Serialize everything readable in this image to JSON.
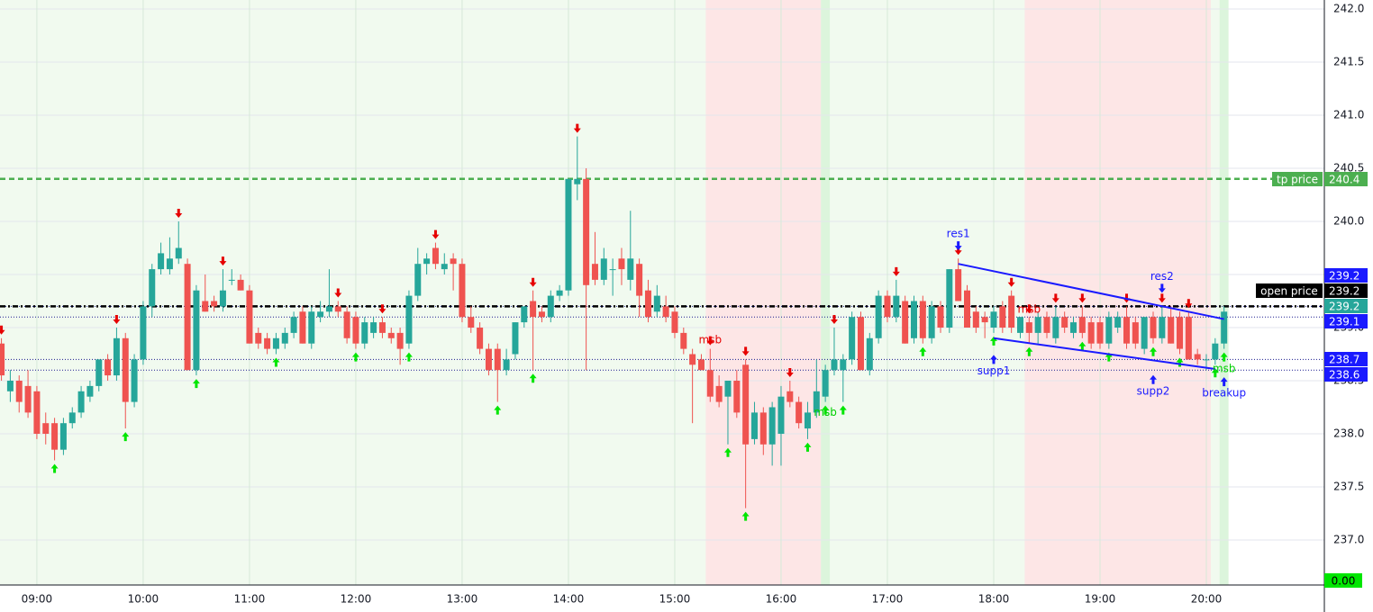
{
  "chart_data": {
    "type": "candlestick",
    "up_color": "#26a69a",
    "down_color": "#ef5350",
    "xlim": [
      519.2,
      1266.6
    ],
    "ylim": [
      236.576,
      242.085
    ],
    "xticks": [
      {
        "value": 540,
        "label": "09:00"
      },
      {
        "value": 600,
        "label": "10:00"
      },
      {
        "value": 660,
        "label": "11:00"
      },
      {
        "value": 720,
        "label": "12:00"
      },
      {
        "value": 780,
        "label": "13:00"
      },
      {
        "value": 840,
        "label": "14:00"
      },
      {
        "value": 900,
        "label": "15:00"
      },
      {
        "value": 960,
        "label": "16:00"
      },
      {
        "value": 1020,
        "label": "17:00"
      },
      {
        "value": 1080,
        "label": "18:00"
      },
      {
        "value": 1140,
        "label": "19:00"
      },
      {
        "value": 1200,
        "label": "20:00"
      }
    ],
    "yticks": [
      {
        "value": 237,
        "label": "237.0"
      },
      237.5,
      {
        "value": 238,
        "label": "238.0"
      },
      238.5,
      {
        "value": 239,
        "label": "239.0"
      },
      239.5,
      {
        "value": 240,
        "label": "240.0"
      },
      240.5,
      {
        "value": 241,
        "label": "241.0"
      },
      241.5,
      {
        "value": 242,
        "label": "242.0"
      }
    ],
    "grid": true,
    "zones": [
      {
        "x": [
          519.2,
          1212.5
        ],
        "color": "#f1faef"
      },
      {
        "x": [
          917.5,
          982.5
        ],
        "color": "#fde6e6"
      },
      {
        "x": [
          982.5,
          987.5
        ],
        "color": "#dcf5dc"
      },
      {
        "x": [
          1097.5,
          1202.5
        ],
        "color": "#fde6e6"
      },
      {
        "x": [
          1207.5,
          1212.5
        ],
        "color": "#dcf5dc"
      }
    ],
    "candles": [
      [
        520,
        238.85,
        238.9,
        238.5,
        238.55
      ],
      [
        525,
        238.4,
        238.6,
        238.3,
        238.5
      ],
      [
        530,
        238.5,
        238.55,
        238.2,
        238.3
      ],
      [
        535,
        238.45,
        238.6,
        238.15,
        238.2
      ],
      [
        540,
        238.4,
        238.45,
        237.95,
        238.0
      ],
      [
        545,
        238.1,
        238.2,
        237.9,
        238.0
      ],
      [
        550,
        238.1,
        238.15,
        237.75,
        237.85
      ],
      [
        555,
        237.85,
        238.15,
        237.8,
        238.1
      ],
      [
        560,
        238.1,
        238.25,
        238.05,
        238.2
      ],
      [
        565,
        238.2,
        238.45,
        238.15,
        238.4
      ],
      [
        570,
        238.35,
        238.5,
        238.3,
        238.45
      ],
      [
        575,
        238.45,
        238.7,
        238.4,
        238.7
      ],
      [
        580,
        238.7,
        238.75,
        238.5,
        238.55
      ],
      [
        585,
        238.55,
        239.0,
        238.5,
        238.9
      ],
      [
        590,
        238.9,
        238.95,
        238.05,
        238.3
      ],
      [
        595,
        238.3,
        238.75,
        238.25,
        238.7
      ],
      [
        600,
        238.7,
        239.25,
        238.65,
        239.2
      ],
      [
        605,
        239.2,
        239.6,
        239.1,
        239.55
      ],
      [
        610,
        239.55,
        239.8,
        239.5,
        239.7
      ],
      [
        615,
        239.55,
        239.85,
        239.5,
        239.65
      ],
      [
        620,
        239.65,
        240.0,
        239.6,
        239.75
      ],
      [
        625,
        239.6,
        239.65,
        238.6,
        238.6
      ],
      [
        630,
        238.6,
        239.4,
        238.55,
        239.35
      ],
      [
        635,
        239.25,
        239.5,
        239.15,
        239.15
      ],
      [
        640,
        239.25,
        239.3,
        239.15,
        239.2
      ],
      [
        645,
        239.2,
        239.55,
        239.15,
        239.35
      ],
      [
        650,
        239.45,
        239.55,
        239.4,
        239.45
      ],
      [
        655,
        239.45,
        239.5,
        239.35,
        239.35
      ],
      [
        660,
        239.35,
        239.4,
        238.85,
        238.85
      ],
      [
        665,
        238.95,
        239.0,
        238.8,
        238.85
      ],
      [
        670,
        238.9,
        238.95,
        238.75,
        238.8
      ],
      [
        675,
        238.8,
        238.95,
        238.75,
        238.9
      ],
      [
        680,
        238.85,
        239.0,
        238.8,
        238.95
      ],
      [
        685,
        238.95,
        239.15,
        238.9,
        239.1
      ],
      [
        690,
        239.15,
        239.2,
        238.85,
        238.85
      ],
      [
        695,
        238.85,
        239.2,
        238.8,
        239.15
      ],
      [
        700,
        239.1,
        239.25,
        239.05,
        239.15
      ],
      [
        705,
        239.15,
        239.55,
        239.1,
        239.2
      ],
      [
        710,
        239.2,
        239.25,
        239.1,
        239.15
      ],
      [
        715,
        239.15,
        239.2,
        238.85,
        238.9
      ],
      [
        720,
        239.1,
        239.15,
        238.8,
        238.85
      ],
      [
        725,
        238.85,
        239.1,
        238.8,
        239.05
      ],
      [
        730,
        238.95,
        239.1,
        238.9,
        239.05
      ],
      [
        735,
        239.05,
        239.1,
        238.9,
        238.95
      ],
      [
        740,
        238.95,
        239.0,
        238.85,
        238.9
      ],
      [
        745,
        238.95,
        239.0,
        238.65,
        238.8
      ],
      [
        750,
        238.85,
        239.35,
        238.8,
        239.3
      ],
      [
        755,
        239.3,
        239.75,
        239.25,
        239.6
      ],
      [
        760,
        239.6,
        239.7,
        239.5,
        239.65
      ],
      [
        765,
        239.75,
        239.8,
        239.55,
        239.6
      ],
      [
        770,
        239.55,
        239.7,
        239.5,
        239.6
      ],
      [
        775,
        239.65,
        239.7,
        239.35,
        239.6
      ],
      [
        780,
        239.6,
        239.65,
        239.05,
        239.1
      ],
      [
        785,
        239.1,
        239.2,
        238.95,
        239.0
      ],
      [
        790,
        239.0,
        239.05,
        238.75,
        238.8
      ],
      [
        795,
        238.8,
        238.85,
        238.55,
        238.6
      ],
      [
        800,
        238.8,
        238.85,
        238.3,
        238.6
      ],
      [
        805,
        238.6,
        238.8,
        238.55,
        238.7
      ],
      [
        810,
        238.75,
        239.05,
        238.7,
        239.05
      ],
      [
        815,
        239.05,
        239.2,
        239.0,
        239.2
      ],
      [
        820,
        239.25,
        239.35,
        238.6,
        239.1
      ],
      [
        825,
        239.15,
        239.2,
        239.05,
        239.1
      ],
      [
        830,
        239.1,
        239.35,
        239.05,
        239.3
      ],
      [
        835,
        239.3,
        239.4,
        239.25,
        239.35
      ],
      [
        840,
        239.35,
        240.4,
        239.3,
        240.4
      ],
      [
        845,
        240.35,
        240.8,
        240.2,
        240.4
      ],
      [
        850,
        240.4,
        240.5,
        238.6,
        239.4
      ],
      [
        855,
        239.6,
        239.9,
        239.4,
        239.45
      ],
      [
        860,
        239.45,
        239.75,
        239.4,
        239.65
      ],
      [
        865,
        239.55,
        239.65,
        239.3,
        239.55
      ],
      [
        870,
        239.65,
        239.75,
        239.4,
        239.55
      ],
      [
        875,
        239.45,
        240.1,
        239.35,
        239.65
      ],
      [
        880,
        239.6,
        239.65,
        239.1,
        239.3
      ],
      [
        885,
        239.35,
        239.45,
        239.05,
        239.1
      ],
      [
        890,
        239.15,
        239.4,
        239.1,
        239.3
      ],
      [
        895,
        239.2,
        239.3,
        239.05,
        239.1
      ],
      [
        900,
        239.15,
        239.2,
        238.9,
        238.95
      ],
      [
        905,
        238.95,
        239.0,
        238.75,
        238.8
      ],
      [
        910,
        238.75,
        238.8,
        238.1,
        238.65
      ],
      [
        915,
        238.7,
        238.75,
        238.6,
        238.6
      ],
      [
        920,
        238.6,
        238.8,
        238.3,
        238.35
      ],
      [
        925,
        238.45,
        238.55,
        238.25,
        238.3
      ],
      [
        930,
        238.35,
        238.5,
        237.9,
        238.5
      ],
      [
        935,
        238.5,
        238.6,
        238.15,
        238.2
      ],
      [
        940,
        238.65,
        238.7,
        237.3,
        237.9
      ],
      [
        945,
        237.95,
        238.3,
        237.9,
        238.2
      ],
      [
        950,
        238.2,
        238.25,
        237.8,
        237.9
      ],
      [
        955,
        237.9,
        238.3,
        237.7,
        238.25
      ],
      [
        960,
        238.0,
        238.45,
        237.7,
        238.35
      ],
      [
        965,
        238.4,
        238.5,
        238.25,
        238.3
      ],
      [
        970,
        238.3,
        238.35,
        238.05,
        238.1
      ],
      [
        975,
        238.05,
        238.3,
        237.95,
        238.2
      ],
      [
        980,
        238.2,
        238.7,
        238.15,
        238.4
      ],
      [
        985,
        238.35,
        238.65,
        238.3,
        238.6
      ],
      [
        990,
        238.6,
        239.0,
        238.55,
        238.7
      ],
      [
        995,
        238.6,
        238.75,
        238.3,
        238.7
      ],
      [
        1000,
        238.7,
        239.15,
        238.65,
        239.1
      ],
      [
        1005,
        239.1,
        239.15,
        238.6,
        238.6
      ],
      [
        1010,
        238.6,
        238.95,
        238.55,
        238.9
      ],
      [
        1015,
        238.9,
        239.35,
        238.85,
        239.3
      ],
      [
        1020,
        239.3,
        239.35,
        239.05,
        239.1
      ],
      [
        1025,
        239.1,
        239.45,
        239.05,
        239.3
      ],
      [
        1030,
        239.25,
        239.3,
        238.85,
        238.85
      ],
      [
        1035,
        238.9,
        239.3,
        238.85,
        239.25
      ],
      [
        1040,
        239.25,
        239.3,
        238.85,
        238.9
      ],
      [
        1045,
        238.9,
        239.25,
        238.85,
        239.2
      ],
      [
        1050,
        239.2,
        239.25,
        238.95,
        239.0
      ],
      [
        1055,
        239.0,
        239.55,
        238.95,
        239.55
      ],
      [
        1060,
        239.55,
        239.65,
        239.25,
        239.25
      ],
      [
        1065,
        239.35,
        239.4,
        239.0,
        239.0
      ],
      [
        1070,
        239.15,
        239.2,
        238.95,
        239.0
      ],
      [
        1075,
        239.1,
        239.15,
        238.9,
        239.05
      ],
      [
        1080,
        239.0,
        239.2,
        238.95,
        239.15
      ],
      [
        1085,
        239.2,
        239.25,
        238.95,
        239.0
      ],
      [
        1090,
        239.3,
        239.35,
        238.95,
        239.0
      ],
      [
        1095,
        238.95,
        239.1,
        238.9,
        239.1
      ],
      [
        1100,
        239.05,
        239.1,
        238.85,
        238.95
      ],
      [
        1105,
        238.95,
        239.15,
        238.85,
        239.1
      ],
      [
        1110,
        239.1,
        239.15,
        238.9,
        238.95
      ],
      [
        1115,
        238.9,
        239.2,
        238.85,
        239.1
      ],
      [
        1120,
        239.1,
        239.15,
        238.95,
        239.0
      ],
      [
        1125,
        238.95,
        239.1,
        238.9,
        239.05
      ],
      [
        1130,
        239.1,
        239.2,
        238.9,
        238.95
      ],
      [
        1135,
        239.05,
        239.1,
        238.8,
        238.85
      ],
      [
        1140,
        239.05,
        239.1,
        238.8,
        238.85
      ],
      [
        1145,
        238.85,
        239.15,
        238.8,
        239.1
      ],
      [
        1150,
        239.0,
        239.15,
        238.95,
        239.1
      ],
      [
        1155,
        239.1,
        239.2,
        238.8,
        238.85
      ],
      [
        1160,
        239.05,
        239.1,
        238.8,
        238.85
      ],
      [
        1165,
        238.8,
        239.1,
        238.75,
        239.1
      ],
      [
        1170,
        239.1,
        239.15,
        238.85,
        238.9
      ],
      [
        1175,
        238.9,
        239.2,
        238.85,
        239.1
      ],
      [
        1180,
        239.1,
        239.2,
        238.85,
        238.85
      ],
      [
        1185,
        239.1,
        239.15,
        238.75,
        238.8
      ],
      [
        1190,
        239.1,
        239.15,
        238.7,
        238.7
      ],
      [
        1195,
        238.75,
        238.8,
        238.65,
        238.7
      ],
      [
        1200,
        238.7,
        238.75,
        238.6,
        238.7
      ],
      [
        1205,
        238.7,
        238.9,
        238.65,
        238.85
      ],
      [
        1210,
        238.85,
        239.2,
        238.8,
        239.15
      ]
    ],
    "signals": {
      "sell_color": "#e60000",
      "buy_color": "#00e600",
      "sell": [
        520,
        585,
        620,
        645,
        710,
        735,
        765,
        820,
        845,
        920,
        940,
        965,
        990,
        1025,
        1060,
        1090,
        1100,
        1115,
        1130,
        1155,
        1175,
        1190
      ],
      "buy": [
        550,
        590,
        630,
        675,
        720,
        750,
        800,
        820,
        930,
        940,
        975,
        985,
        995,
        1040,
        1080,
        1100,
        1130,
        1145,
        1170,
        1185,
        1205,
        1210
      ]
    },
    "price_lines": [
      {
        "name": "tp price",
        "value": 240.4,
        "color": "#4caf50",
        "style": "dashed"
      },
      {
        "name": "open price",
        "value": 239.2,
        "color": "#000000",
        "style": "dashdot"
      }
    ],
    "tags": [
      {
        "value": 239.2,
        "color": "#1a1aff"
      },
      {
        "value": 239.2,
        "color": "#26a69a"
      },
      {
        "value": 239.1,
        "color": "#1a1aff"
      },
      {
        "value": 238.7,
        "color": "#1a1aff"
      },
      {
        "value": 238.6,
        "color": "#1a1aff"
      }
    ],
    "trendlines": [
      {
        "x": [
          1060,
          1210
        ],
        "y": [
          239.6,
          239.08
        ],
        "color": "#1a1aff"
      },
      {
        "x": [
          1080,
          1205
        ],
        "y": [
          238.9,
          238.61
        ],
        "color": "#1a1aff"
      }
    ],
    "annotations": [
      {
        "text": "res1",
        "x": 1060,
        "y": 239.88,
        "color": "#1a1aff",
        "arrow": "down"
      },
      {
        "text": "res2",
        "x": 1175,
        "y": 239.48,
        "color": "#1a1aff",
        "arrow": "down"
      },
      {
        "text": "supp1",
        "x": 1080,
        "y": 238.59,
        "color": "#1a1aff",
        "arrow": "up"
      },
      {
        "text": "supp2",
        "x": 1170,
        "y": 238.4,
        "color": "#1a1aff",
        "arrow": "up"
      },
      {
        "text": "breakup",
        "x": 1210,
        "y": 238.38,
        "color": "#1a1aff",
        "arrow": "up"
      },
      {
        "text": "msb",
        "x": 920,
        "y": 238.88,
        "color": "#e60000"
      },
      {
        "text": "msb",
        "x": 1100,
        "y": 239.17,
        "color": "#e60000"
      },
      {
        "text": "msb",
        "x": 985,
        "y": 238.2,
        "color": "#00d000"
      },
      {
        "text": "msb",
        "x": 1210,
        "y": 238.61,
        "color": "#00d000"
      }
    ],
    "indicator_label": "0.00"
  }
}
